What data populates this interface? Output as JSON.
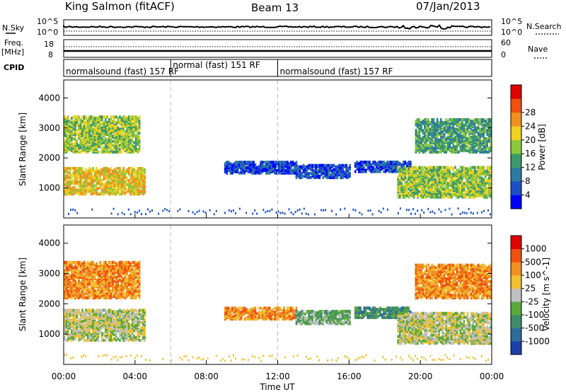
{
  "header": {
    "station": "King Salmon (fitACF)",
    "beam": "Beam 13",
    "date": "07/Jan/2013"
  },
  "side_labels": {
    "nsky": "N.Sky",
    "freq_top": "Freq.",
    "freq_unit": "[MHz]",
    "cpid": "CPID",
    "nsearch": "N.Search",
    "nave": "Nave"
  },
  "strip_axes": {
    "nsky_ticks": [
      "10^5",
      "10^0"
    ],
    "nsearch_ticks": [
      "10^5",
      "10^0"
    ],
    "freq_ticks": [
      "18",
      "8"
    ],
    "nave_ticks": [
      "60",
      "0"
    ]
  },
  "cpid_segments": [
    {
      "label": "normalsound (fast) 157 RF",
      "start_hour": 0,
      "end_hour": 6
    },
    {
      "label": "normal (fast) 151 RF",
      "start_hour": 6,
      "end_hour": 12
    },
    {
      "label": "normalsound (fast) 157 RF",
      "start_hour": 12,
      "end_hour": 24
    }
  ],
  "chart_data": [
    {
      "type": "heatmap",
      "name": "Power",
      "x_range_hours": [
        0,
        24
      ],
      "ylim": [
        0,
        4600
      ],
      "ylabel": "Slant Range [km]",
      "yticks": [
        "1000",
        "2000",
        "3000",
        "4000"
      ],
      "colorbar": {
        "label": "Power [dB]",
        "ticks": [
          "4",
          "8",
          "12",
          "16",
          "20",
          "24",
          "28"
        ],
        "colors": [
          "#0000ff",
          "#1a4fc8",
          "#2c7aa0",
          "#3c9a6a",
          "#8cc83c",
          "#f0d020",
          "#f09020",
          "#f05010",
          "#e00000"
        ]
      },
      "echo_regions": [
        {
          "t0": 0.0,
          "t1": 4.6,
          "r0": 800,
          "r1": 1700,
          "level": 5
        },
        {
          "t0": 0.0,
          "t1": 4.3,
          "r0": 2200,
          "r1": 3400,
          "level": 4
        },
        {
          "t0": 9.0,
          "t1": 13.0,
          "r0": 1500,
          "r1": 1900,
          "level": 1
        },
        {
          "t0": 13.0,
          "t1": 16.0,
          "r0": 1350,
          "r1": 1800,
          "level": 1
        },
        {
          "t0": 16.3,
          "t1": 19.5,
          "r0": 1550,
          "r1": 1900,
          "level": 1
        },
        {
          "t0": 18.7,
          "t1": 24.0,
          "r0": 700,
          "r1": 1700,
          "level": 4
        },
        {
          "t0": 19.7,
          "t1": 24.0,
          "r0": 2200,
          "r1": 3300,
          "level": 3
        }
      ]
    },
    {
      "type": "heatmap",
      "name": "Velocity",
      "x_range_hours": [
        0,
        24
      ],
      "ylim": [
        0,
        4600
      ],
      "ylabel": "Slant Range [km]",
      "yticks": [
        "1000",
        "2000",
        "3000",
        "4000"
      ],
      "colorbar": {
        "label": "Velocity [m s^-1]",
        "ticks": [
          "1000",
          "500",
          "100",
          "25",
          "-25",
          "-100",
          "-500",
          "-1000"
        ],
        "colors": [
          "#1c3fa8",
          "#2e6a9a",
          "#3f8c6a",
          "#5aa83c",
          "#c0c0c0",
          "#f0c030",
          "#f09020",
          "#f05010",
          "#e00000"
        ]
      },
      "echo_regions": [
        {
          "t0": 0.0,
          "t1": 4.6,
          "r0": 800,
          "r1": 1800,
          "level": 4
        },
        {
          "t0": 0.0,
          "t1": 4.3,
          "r0": 2200,
          "r1": 3400,
          "level": 6
        },
        {
          "t0": 9.0,
          "t1": 13.0,
          "r0": 1500,
          "r1": 1900,
          "level": 6
        },
        {
          "t0": 13.0,
          "t1": 16.0,
          "r0": 1350,
          "r1": 1800,
          "level": 3
        },
        {
          "t0": 16.3,
          "t1": 19.5,
          "r0": 1550,
          "r1": 1900,
          "level": 2
        },
        {
          "t0": 18.7,
          "t1": 24.0,
          "r0": 700,
          "r1": 1700,
          "level": 4
        },
        {
          "t0": 19.7,
          "t1": 24.0,
          "r0": 2200,
          "r1": 3300,
          "level": 6
        }
      ]
    }
  ],
  "x_axis": {
    "label": "Time UT",
    "ticks": [
      "00:00",
      "04:00",
      "08:00",
      "12:00",
      "16:00",
      "20:00",
      "00:00"
    ]
  }
}
